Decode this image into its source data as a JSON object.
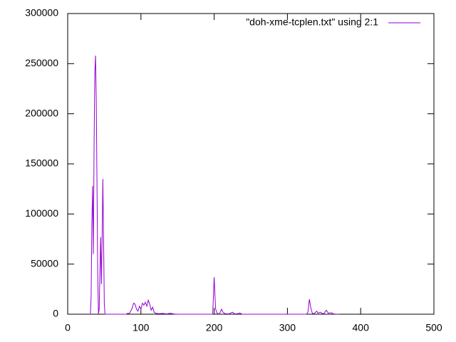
{
  "chart_data": {
    "type": "line",
    "x": [
      30,
      31,
      32,
      33,
      34,
      35,
      36,
      37,
      38,
      39,
      40,
      41,
      42,
      43,
      44,
      45,
      46,
      47,
      48,
      49,
      50,
      51,
      52,
      80,
      82,
      84,
      86,
      88,
      90,
      92,
      94,
      96,
      98,
      100,
      102,
      104,
      106,
      108,
      110,
      112,
      114,
      116,
      118,
      120,
      125,
      130,
      135,
      140,
      145,
      150,
      198,
      200,
      201,
      202,
      204,
      206,
      208,
      210,
      212,
      215,
      220,
      225,
      228,
      232,
      235,
      238,
      326,
      328,
      330,
      332,
      334,
      336,
      338,
      340,
      342,
      345,
      348,
      350,
      353,
      356,
      360,
      363,
      370
    ],
    "series": [
      {
        "name": "\"doh-xme-tcplen.txt\" using 2:1",
        "color": "#9400d3",
        "values": [
          0,
          0,
          18000,
          90000,
          128000,
          60000,
          165000,
          240000,
          258000,
          215000,
          130000,
          40000,
          0,
          5000,
          42000,
          77000,
          30000,
          75000,
          135000,
          75000,
          10000,
          0,
          0,
          0,
          1000,
          500,
          3000,
          6000,
          11000,
          10000,
          5000,
          3000,
          8000,
          5000,
          11000,
          9000,
          12000,
          8000,
          14000,
          10000,
          4000,
          7000,
          2000,
          1000,
          500,
          800,
          300,
          1000,
          200,
          0,
          0,
          37000,
          20000,
          5000,
          1000,
          0,
          1500,
          5000,
          2000,
          500,
          300,
          2000,
          300,
          500,
          1200,
          0,
          0,
          2000,
          15000,
          6000,
          1000,
          500,
          1500,
          3000,
          1000,
          2000,
          500,
          800,
          4000,
          1000,
          1500,
          300,
          0
        ]
      }
    ],
    "xlim": [
      0,
      500
    ],
    "xticks": [
      0,
      100,
      200,
      300,
      400,
      500
    ],
    "ylim": [
      0,
      300000
    ],
    "yticks": [
      0,
      50000,
      100000,
      150000,
      200000,
      250000,
      300000
    ],
    "legend": "top-right",
    "grid": false
  }
}
